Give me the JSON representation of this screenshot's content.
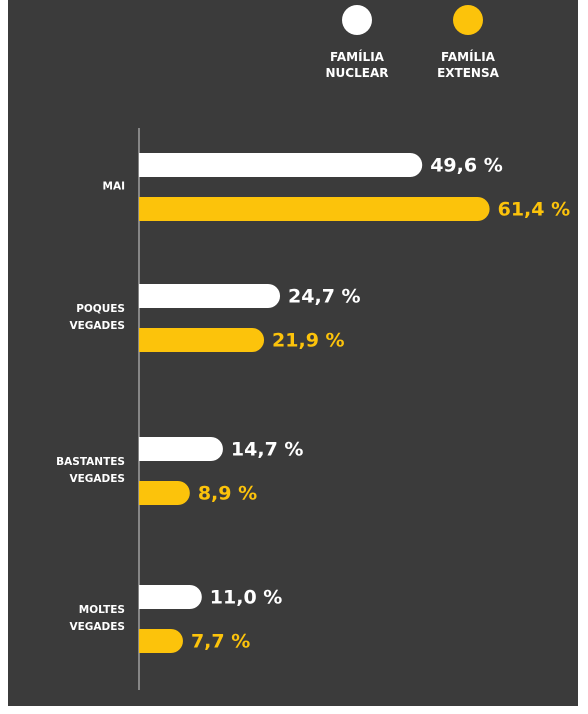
{
  "chart_data": {
    "type": "bar",
    "orientation": "horizontal",
    "categories": [
      "MAI",
      "POQUES VEGADES",
      "BASTANTES VEGADES",
      "MOLTES VEGADES"
    ],
    "series": [
      {
        "name": "FAMÍLIA NUCLEAR",
        "color": "#ffffff",
        "values": [
          49.6,
          24.7,
          14.7,
          11.0
        ],
        "value_labels": [
          "49,6 %",
          "24,7 %",
          "14,7 %",
          "11,0 %"
        ]
      },
      {
        "name": "FAMÍLIA EXTENSA",
        "color": "#fcc30b",
        "values": [
          61.4,
          21.9,
          8.9,
          7.7
        ],
        "value_labels": [
          "61,4 %",
          "21,9 %",
          "8,9 %",
          "7,7 %"
        ]
      }
    ],
    "legend": "top-right"
  }
}
